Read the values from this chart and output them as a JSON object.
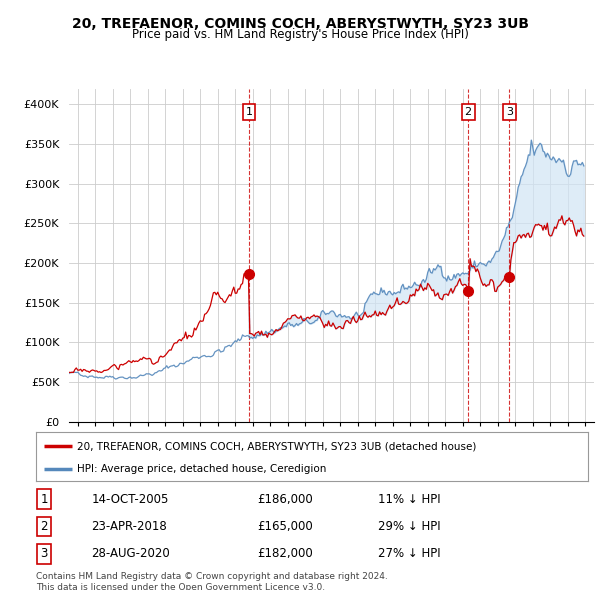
{
  "title": "20, TREFAENOR, COMINS COCH, ABERYSTWYTH, SY23 3UB",
  "subtitle": "Price paid vs. HM Land Registry's House Price Index (HPI)",
  "ylim": [
    0,
    420000
  ],
  "yticks": [
    0,
    50000,
    100000,
    150000,
    200000,
    250000,
    300000,
    350000,
    400000
  ],
  "xlim_start": 1995.5,
  "xlim_end": 2025.5,
  "red_color": "#cc0000",
  "blue_color": "#5588bb",
  "fill_color": "#d0e4f5",
  "legend_label_red": "20, TREFAENOR, COMINS COCH, ABERYSTWYTH, SY23 3UB (detached house)",
  "legend_label_blue": "HPI: Average price, detached house, Ceredigion",
  "sale_points": [
    {
      "date_x": 2005.79,
      "price": 186000,
      "label": "1",
      "text": "14-OCT-2005",
      "amount": "£186,000",
      "pct": "11% ↓ HPI"
    },
    {
      "date_x": 2018.31,
      "price": 165000,
      "label": "2",
      "text": "23-APR-2018",
      "amount": "£165,000",
      "pct": "29% ↓ HPI"
    },
    {
      "date_x": 2020.66,
      "price": 182000,
      "label": "3",
      "text": "28-AUG-2020",
      "amount": "£182,000",
      "pct": "27% ↓ HPI"
    }
  ],
  "footer": "Contains HM Land Registry data © Crown copyright and database right 2024.\nThis data is licensed under the Open Government Licence v3.0.",
  "background_color": "#ffffff",
  "grid_color": "#cccccc"
}
